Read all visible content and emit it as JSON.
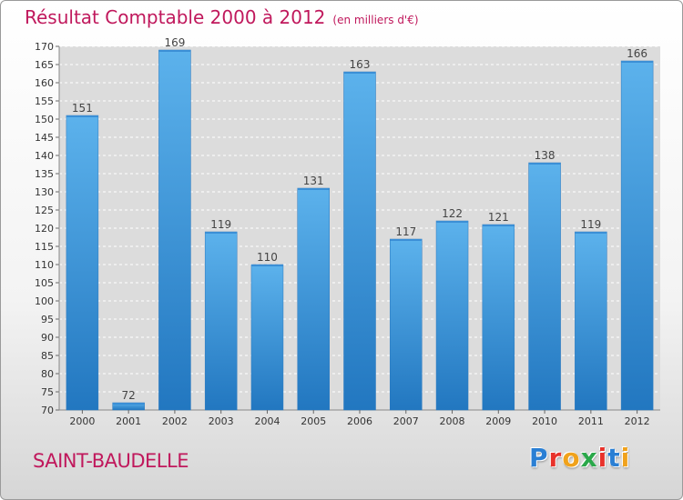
{
  "chart_data": {
    "type": "bar",
    "title": "Résultat Comptable 2000 à 2012",
    "subtitle": "(en milliers d'€)",
    "categories": [
      "2000",
      "2001",
      "2002",
      "2003",
      "2004",
      "2005",
      "2006",
      "2007",
      "2008",
      "2009",
      "2010",
      "2011",
      "2012"
    ],
    "values": [
      151,
      72,
      169,
      119,
      110,
      131,
      163,
      117,
      122,
      121,
      138,
      119,
      166
    ],
    "ylim": [
      70,
      170
    ],
    "yticks": [
      70,
      75,
      80,
      85,
      90,
      95,
      100,
      105,
      110,
      115,
      120,
      125,
      130,
      135,
      140,
      145,
      150,
      155,
      160,
      165,
      170
    ],
    "xlabel": "",
    "ylabel": "",
    "grid": true,
    "bar_color": "#4aa3e0"
  },
  "place_name": "SAINT-BAUDELLE",
  "logo": {
    "letters": [
      "P",
      "r",
      "o",
      "x",
      "i",
      "t",
      "i"
    ],
    "colors": [
      "#2a7fd4",
      "#e8322b",
      "#f0a21c",
      "#2aa84a",
      "#e8322b",
      "#2a7fd4",
      "#f0a21c"
    ]
  }
}
